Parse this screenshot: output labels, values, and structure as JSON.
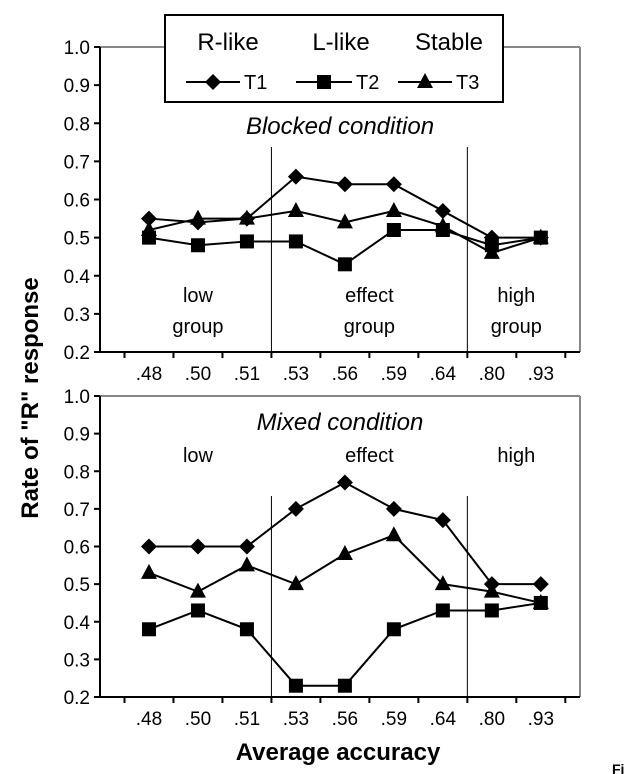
{
  "ylabel": "Rate of \"R\" response",
  "xlabel": "Average accuracy",
  "corner_text": "Fi",
  "legend": {
    "headers": [
      "R-like",
      "L-like",
      "Stable"
    ],
    "series_labels": [
      "T1",
      "T2",
      "T3"
    ]
  },
  "chart_data": [
    {
      "type": "line",
      "title": "Blocked condition",
      "categories": [
        ".48",
        ".50",
        ".51",
        ".53",
        ".56",
        ".59",
        ".64",
        ".80",
        ".93"
      ],
      "ylim": [
        0.2,
        1.0
      ],
      "yticks": [
        "0.2",
        "0.3",
        "0.4",
        "0.5",
        "0.6",
        "0.7",
        "0.8",
        "0.9",
        "1.0"
      ],
      "grid": false,
      "groups": [
        {
          "line1": "low",
          "line2": "group",
          "from": 0,
          "to": 2
        },
        {
          "line1": "effect",
          "line2": "group",
          "from": 3,
          "to": 6
        },
        {
          "line1": "high",
          "line2": "group",
          "from": 7,
          "to": 8
        }
      ],
      "series": [
        {
          "name": "T1",
          "marker": "diamond",
          "values": [
            0.55,
            0.54,
            0.55,
            0.66,
            0.64,
            0.64,
            0.57,
            0.5,
            0.5
          ]
        },
        {
          "name": "T2",
          "marker": "square",
          "values": [
            0.5,
            0.48,
            0.49,
            0.49,
            0.43,
            0.52,
            0.52,
            0.48,
            0.5
          ]
        },
        {
          "name": "T3",
          "marker": "triangle",
          "values": [
            0.52,
            0.55,
            0.55,
            0.57,
            0.54,
            0.57,
            0.53,
            0.46,
            0.5
          ]
        }
      ]
    },
    {
      "type": "line",
      "title": "Mixed condition",
      "categories": [
        ".48",
        ".50",
        ".51",
        ".53",
        ".56",
        ".59",
        ".64",
        ".80",
        ".93"
      ],
      "ylim": [
        0.2,
        1.0
      ],
      "yticks": [
        "0.2",
        "0.3",
        "0.4",
        "0.5",
        "0.6",
        "0.7",
        "0.8",
        "0.9",
        "1.0"
      ],
      "grid": false,
      "groups": [
        {
          "line1": "low",
          "from": 0,
          "to": 2
        },
        {
          "line1": "effect",
          "from": 3,
          "to": 6
        },
        {
          "line1": "high",
          "from": 7,
          "to": 8
        }
      ],
      "series": [
        {
          "name": "T1",
          "marker": "diamond",
          "values": [
            0.6,
            0.6,
            0.6,
            0.7,
            0.77,
            0.7,
            0.67,
            0.5,
            0.5
          ]
        },
        {
          "name": "T2",
          "marker": "square",
          "values": [
            0.38,
            0.43,
            0.38,
            0.23,
            0.23,
            0.38,
            0.43,
            0.43,
            0.45
          ]
        },
        {
          "name": "T3",
          "marker": "triangle",
          "values": [
            0.53,
            0.48,
            0.55,
            0.5,
            0.58,
            0.63,
            0.5,
            0.48,
            0.45
          ]
        }
      ]
    }
  ]
}
